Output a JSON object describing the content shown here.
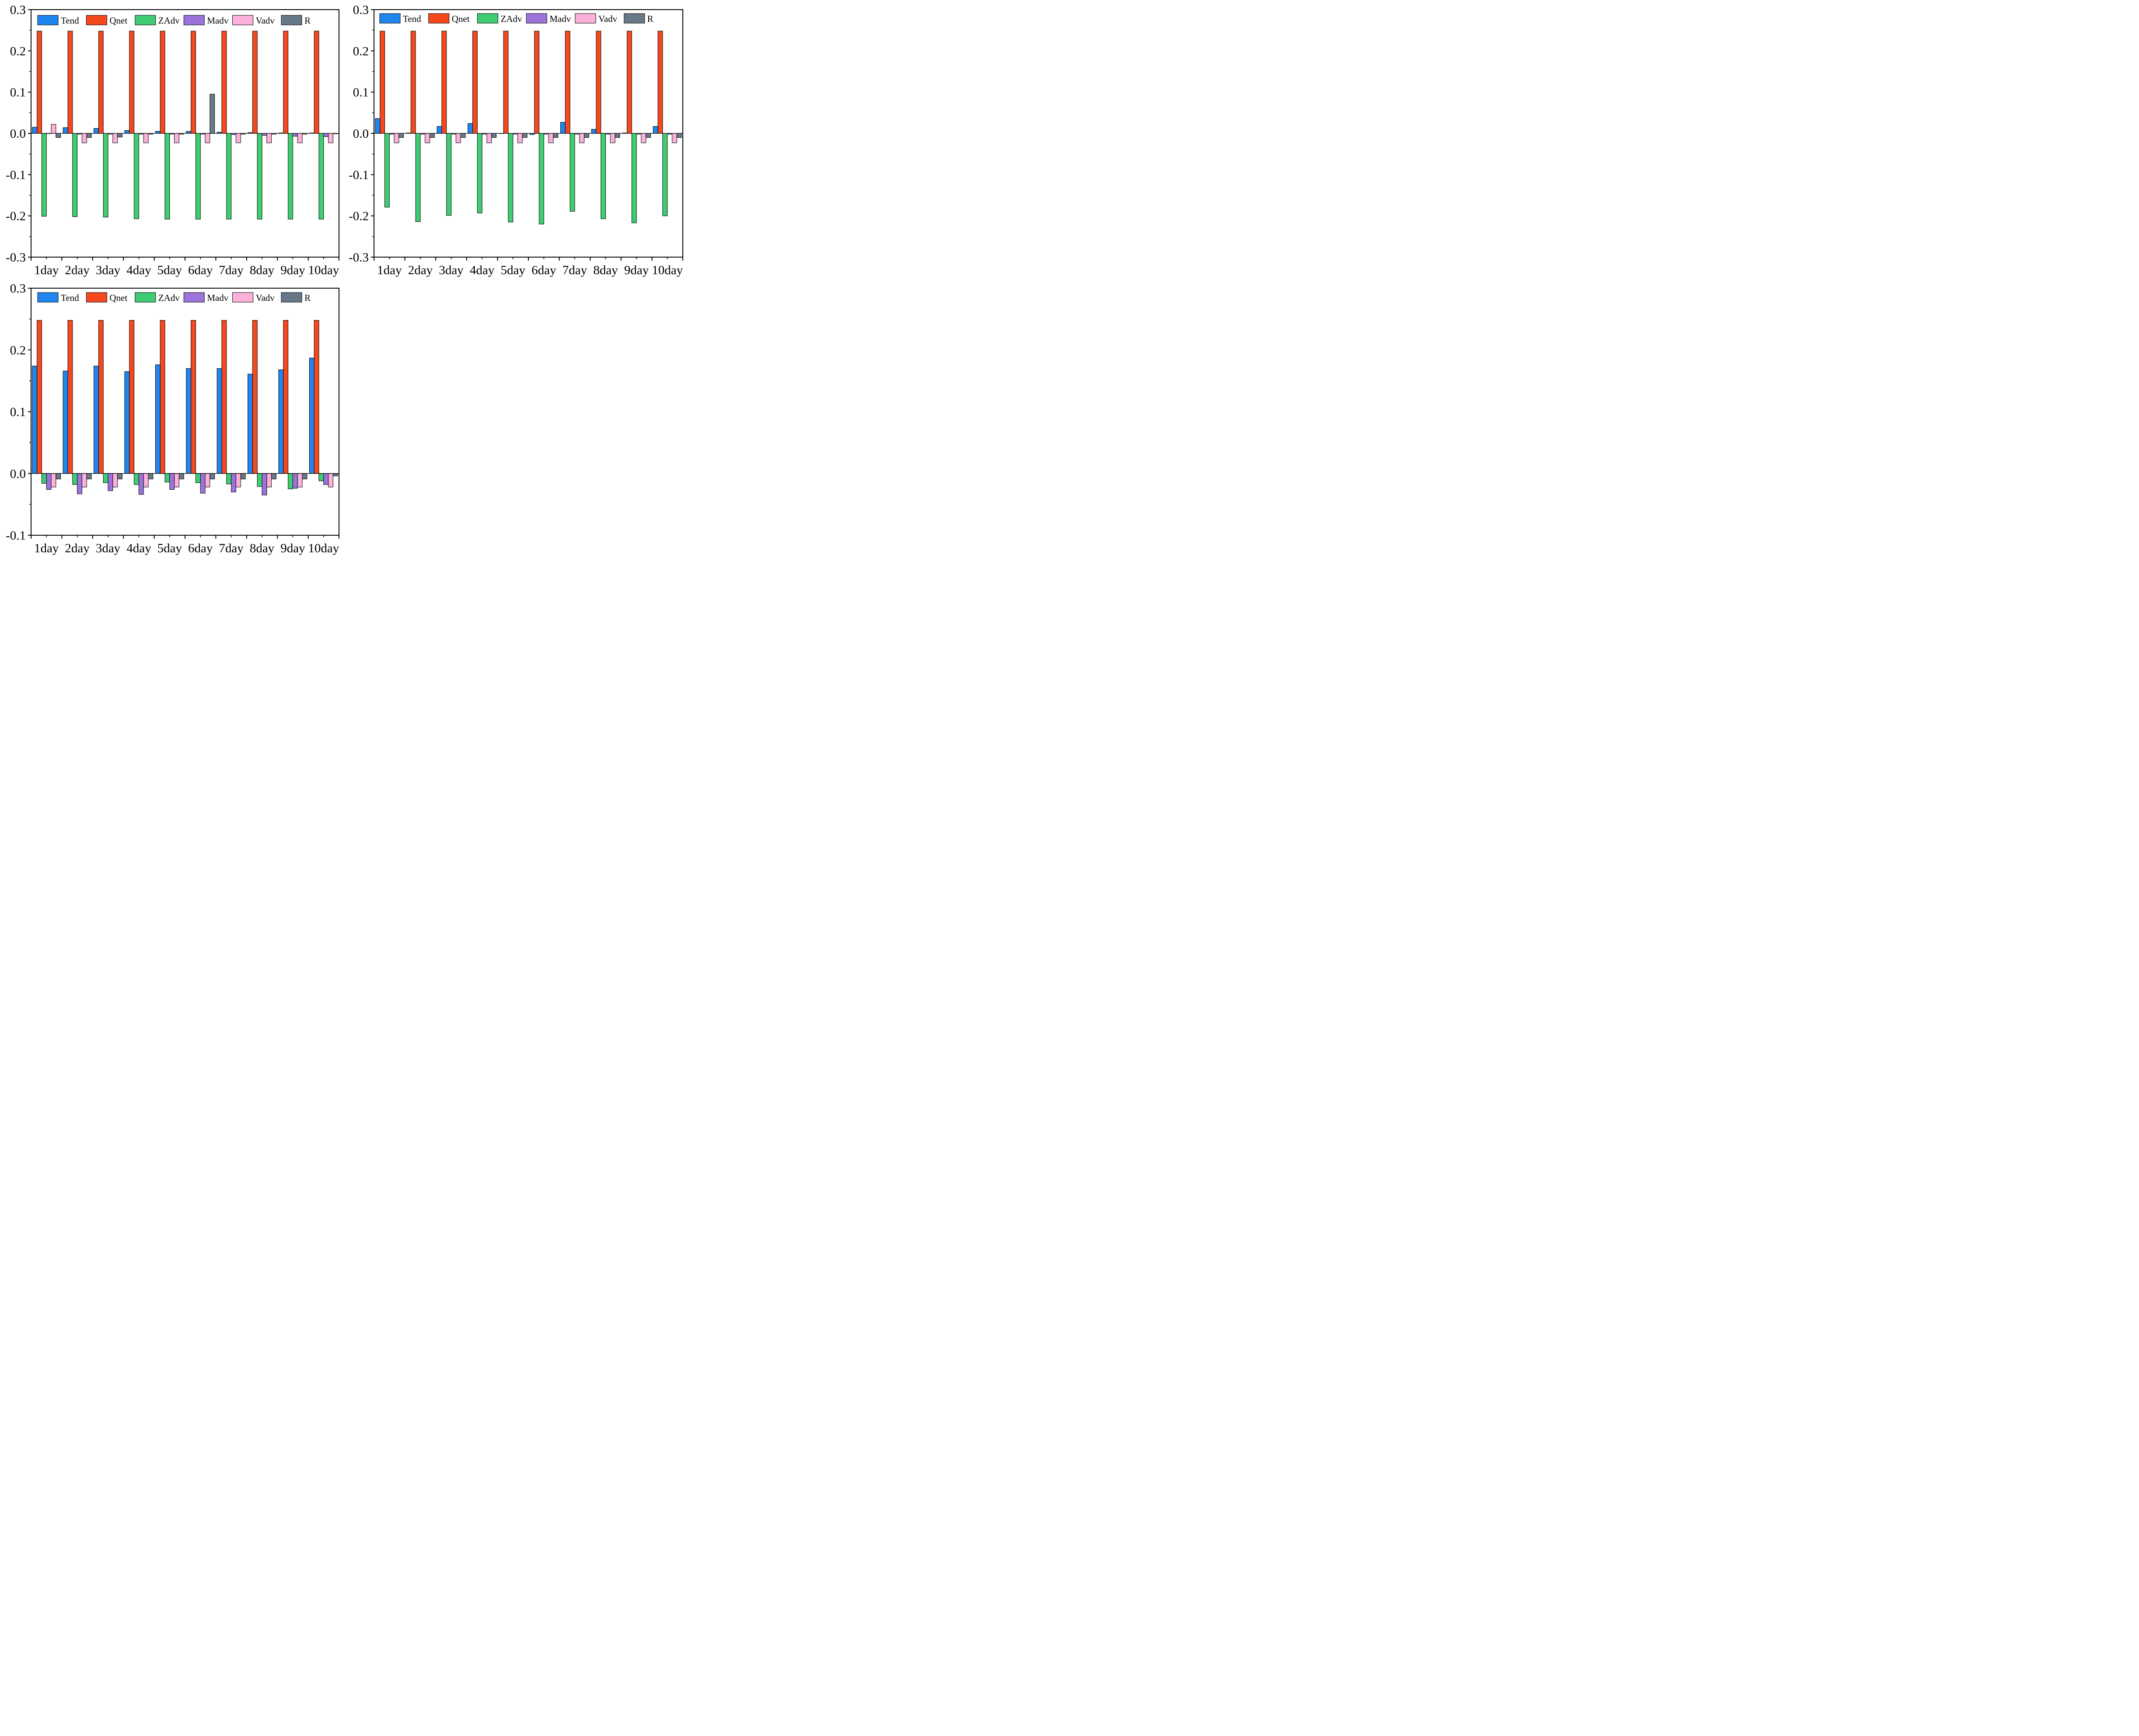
{
  "colors": {
    "Tend": "#1f86f0",
    "Qnet": "#f5481d",
    "ZAdv": "#3fcc72",
    "Madv": "#9b73da",
    "Vadv": "#fbb1d9",
    "R": "#687888"
  },
  "chart_data": [
    {
      "type": "bar",
      "categories": [
        "1day",
        "2day",
        "3day",
        "4day",
        "5day",
        "6day",
        "7day",
        "8day",
        "9day",
        "10day"
      ],
      "ylim": [
        -0.3,
        0.3
      ],
      "yticks": [
        "-0.3",
        "-0.2",
        "-0.1",
        "0.0",
        "0.1",
        "0.2",
        "0.3"
      ],
      "legend_position": "top",
      "series": [
        {
          "name": "Tend",
          "values": [
            0.015,
            0.014,
            0.012,
            0.007,
            0.005,
            0.005,
            0.003,
            0.002,
            0.001,
            0.001
          ]
        },
        {
          "name": "Qnet",
          "values": [
            0.248,
            0.248,
            0.248,
            0.248,
            0.248,
            0.248,
            0.248,
            0.248,
            0.248,
            0.248
          ]
        },
        {
          "name": "ZAdv",
          "values": [
            -0.201,
            -0.202,
            -0.203,
            -0.207,
            -0.208,
            -0.208,
            -0.208,
            -0.208,
            -0.208,
            -0.208
          ]
        },
        {
          "name": "Madv",
          "values": [
            0.0,
            -0.002,
            -0.002,
            -0.002,
            -0.002,
            -0.002,
            -0.003,
            -0.005,
            -0.007,
            -0.008
          ]
        },
        {
          "name": "Vadv",
          "values": [
            0.022,
            -0.023,
            -0.023,
            -0.023,
            -0.023,
            -0.023,
            -0.023,
            -0.023,
            -0.023,
            -0.023
          ]
        },
        {
          "name": "R",
          "values": [
            -0.01,
            -0.01,
            -0.009,
            -0.002,
            -0.002,
            0.095,
            -0.002,
            -0.002,
            -0.002,
            -0.001
          ]
        }
      ]
    },
    {
      "type": "bar",
      "categories": [
        "1day",
        "2day",
        "3day",
        "4day",
        "5day",
        "6day",
        "7day",
        "8day",
        "9day",
        "10day"
      ],
      "ylim": [
        -0.3,
        0.3
      ],
      "yticks": [
        "-0.3",
        "-0.2",
        "-0.1",
        "0.0",
        "0.1",
        "0.2",
        "0.3"
      ],
      "legend_position": "top",
      "series": [
        {
          "name": "Tend",
          "values": [
            0.036,
            0.001,
            0.017,
            0.024,
            0.0,
            -0.003,
            0.027,
            0.01,
            0.001,
            0.017
          ]
        },
        {
          "name": "Qnet",
          "values": [
            0.248,
            0.248,
            0.248,
            0.248,
            0.248,
            0.248,
            0.248,
            0.248,
            0.248,
            0.248
          ]
        },
        {
          "name": "ZAdv",
          "values": [
            -0.179,
            -0.214,
            -0.199,
            -0.193,
            -0.215,
            -0.22,
            -0.189,
            -0.207,
            -0.217,
            -0.2
          ]
        },
        {
          "name": "Madv",
          "values": [
            -0.002,
            -0.002,
            -0.002,
            -0.002,
            -0.002,
            -0.002,
            -0.002,
            -0.002,
            -0.002,
            -0.002
          ]
        },
        {
          "name": "Vadv",
          "values": [
            -0.023,
            -0.023,
            -0.023,
            -0.023,
            -0.023,
            -0.023,
            -0.023,
            -0.023,
            -0.023,
            -0.023
          ]
        },
        {
          "name": "R",
          "values": [
            -0.01,
            -0.01,
            -0.01,
            -0.01,
            -0.01,
            -0.01,
            -0.01,
            -0.01,
            -0.01,
            -0.01
          ]
        }
      ]
    },
    {
      "type": "bar",
      "categories": [
        "1day",
        "2day",
        "3day",
        "4day",
        "5day",
        "6day",
        "7day",
        "8day",
        "9day",
        "10day"
      ],
      "ylim": [
        -0.1,
        0.3
      ],
      "yticks": [
        "-0.1",
        "0.0",
        "0.1",
        "0.2",
        "0.3"
      ],
      "legend_position": "top",
      "series": [
        {
          "name": "Tend",
          "values": [
            0.174,
            0.166,
            0.174,
            0.165,
            0.176,
            0.17,
            0.17,
            0.161,
            0.168,
            0.187
          ]
        },
        {
          "name": "Qnet",
          "values": [
            0.248,
            0.248,
            0.248,
            0.248,
            0.248,
            0.248,
            0.248,
            0.248,
            0.248,
            0.248
          ]
        },
        {
          "name": "ZAdv",
          "values": [
            -0.016,
            -0.018,
            -0.015,
            -0.018,
            -0.014,
            -0.015,
            -0.017,
            -0.021,
            -0.025,
            -0.012
          ]
        },
        {
          "name": "Madv",
          "values": [
            -0.026,
            -0.033,
            -0.028,
            -0.034,
            -0.026,
            -0.032,
            -0.03,
            -0.035,
            -0.024,
            -0.018
          ]
        },
        {
          "name": "Vadv",
          "values": [
            -0.022,
            -0.022,
            -0.022,
            -0.022,
            -0.022,
            -0.022,
            -0.022,
            -0.022,
            -0.022,
            -0.022
          ]
        },
        {
          "name": "R",
          "values": [
            -0.009,
            -0.009,
            -0.009,
            -0.009,
            -0.009,
            -0.009,
            -0.009,
            -0.009,
            -0.009,
            -0.004
          ]
        }
      ]
    }
  ]
}
